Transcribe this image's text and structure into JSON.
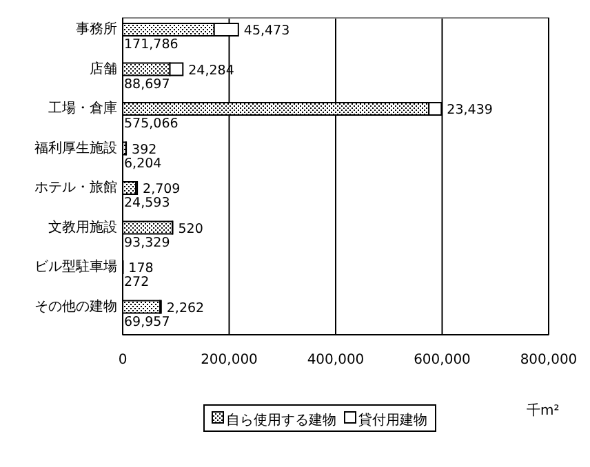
{
  "chart_data": {
    "type": "bar",
    "orientation": "horizontal",
    "stacked": true,
    "categories": [
      "事務所",
      "店舗",
      "工場・倉庫",
      "福利厚生施設",
      "ホテル・旅館",
      "文教用施設",
      "ビル型駐車場",
      "その他の建物"
    ],
    "series": [
      {
        "name": "自ら使用する建物",
        "color": "#000000",
        "values": [
          171786,
          88697,
          575066,
          6204,
          24593,
          93329,
          272,
          69957
        ],
        "value_labels": [
          "171,786",
          "88,697",
          "575,066",
          "6,204",
          "24,593",
          "93,329",
          "272",
          "69,957"
        ]
      },
      {
        "name": "貸付用建物",
        "color": "#ffffff",
        "values": [
          45473,
          24284,
          23439,
          392,
          2709,
          520,
          178,
          2262
        ],
        "value_labels": [
          "45,473",
          "24,284",
          "23,439",
          "392",
          "2,709",
          "520",
          "178",
          "2,262"
        ]
      }
    ],
    "xlim": [
      0,
      800000
    ],
    "xticks": [
      0,
      {
        "value": 200000,
        "label": "200,000"
      },
      {
        "value": 400000,
        "label": "400,000"
      },
      {
        "value": 600000,
        "label": "600,000"
      },
      {
        "value": 800000,
        "label": "800,000"
      }
    ],
    "xlabel": "千m²",
    "grid": "x",
    "legend": "bottom"
  }
}
